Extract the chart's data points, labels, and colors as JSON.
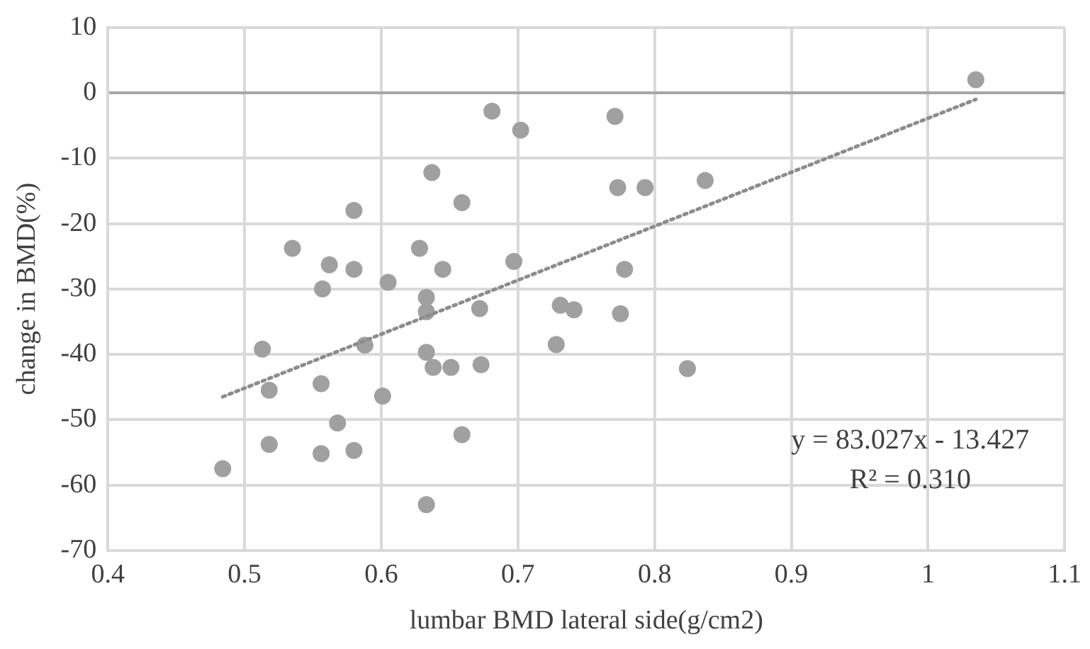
{
  "chart_data": {
    "type": "scatter",
    "xlabel": "lumbar BMD lateral side(g/cm2)",
    "ylabel": "change in BMD(%)",
    "xlim": [
      0.4,
      1.1
    ],
    "xticks": [
      0.4,
      0.5,
      0.6,
      0.7,
      0.8,
      0.9,
      1,
      1.1
    ],
    "ylim": [
      -70,
      10
    ],
    "yticks": [
      -70,
      -60,
      -50,
      -40,
      -30,
      -20,
      -10,
      0,
      10
    ],
    "grid": true,
    "marker": "circle",
    "series": [
      {
        "color": "#a0a0a0",
        "x": [
          0.484,
          0.513,
          0.518,
          0.518,
          0.535,
          0.556,
          0.557,
          0.556,
          0.562,
          0.568,
          0.58,
          0.58,
          0.58,
          0.588,
          0.601,
          0.605,
          0.628,
          0.633,
          0.633,
          0.633,
          0.633,
          0.637,
          0.638,
          0.645,
          0.651,
          0.659,
          0.659,
          0.672,
          0.673,
          0.681,
          0.697,
          0.702,
          0.728,
          0.731,
          0.741,
          0.771,
          0.773,
          0.775,
          0.778,
          0.793,
          0.824,
          0.837,
          1.035
        ],
        "values": [
          -57.5,
          -39.2,
          -45.5,
          -53.8,
          -23.8,
          -44.5,
          -30,
          -55.2,
          -26.3,
          -50.5,
          -18,
          -27,
          -54.7,
          -38.6,
          -46.4,
          -29,
          -23.8,
          -31.3,
          -33.5,
          -39.7,
          -63,
          -12.2,
          -42,
          -27,
          -42,
          -16.8,
          -52.3,
          -33,
          -41.6,
          -2.8,
          -25.8,
          -5.7,
          -38.5,
          -32.5,
          -33.2,
          -3.6,
          -14.5,
          -33.8,
          -27,
          -14.5,
          -42.2,
          -13.4,
          2
        ]
      },
      {
        "type": "line",
        "color": "#8c8c8c",
        "line_style": "dotted",
        "marker": "none",
        "x": [
          0.484,
          1.035
        ],
        "values": [
          -46.5,
          -1
        ]
      }
    ],
    "annotations": [
      "y = 83.027x - 13.427",
      "R² = 0.310"
    ]
  }
}
